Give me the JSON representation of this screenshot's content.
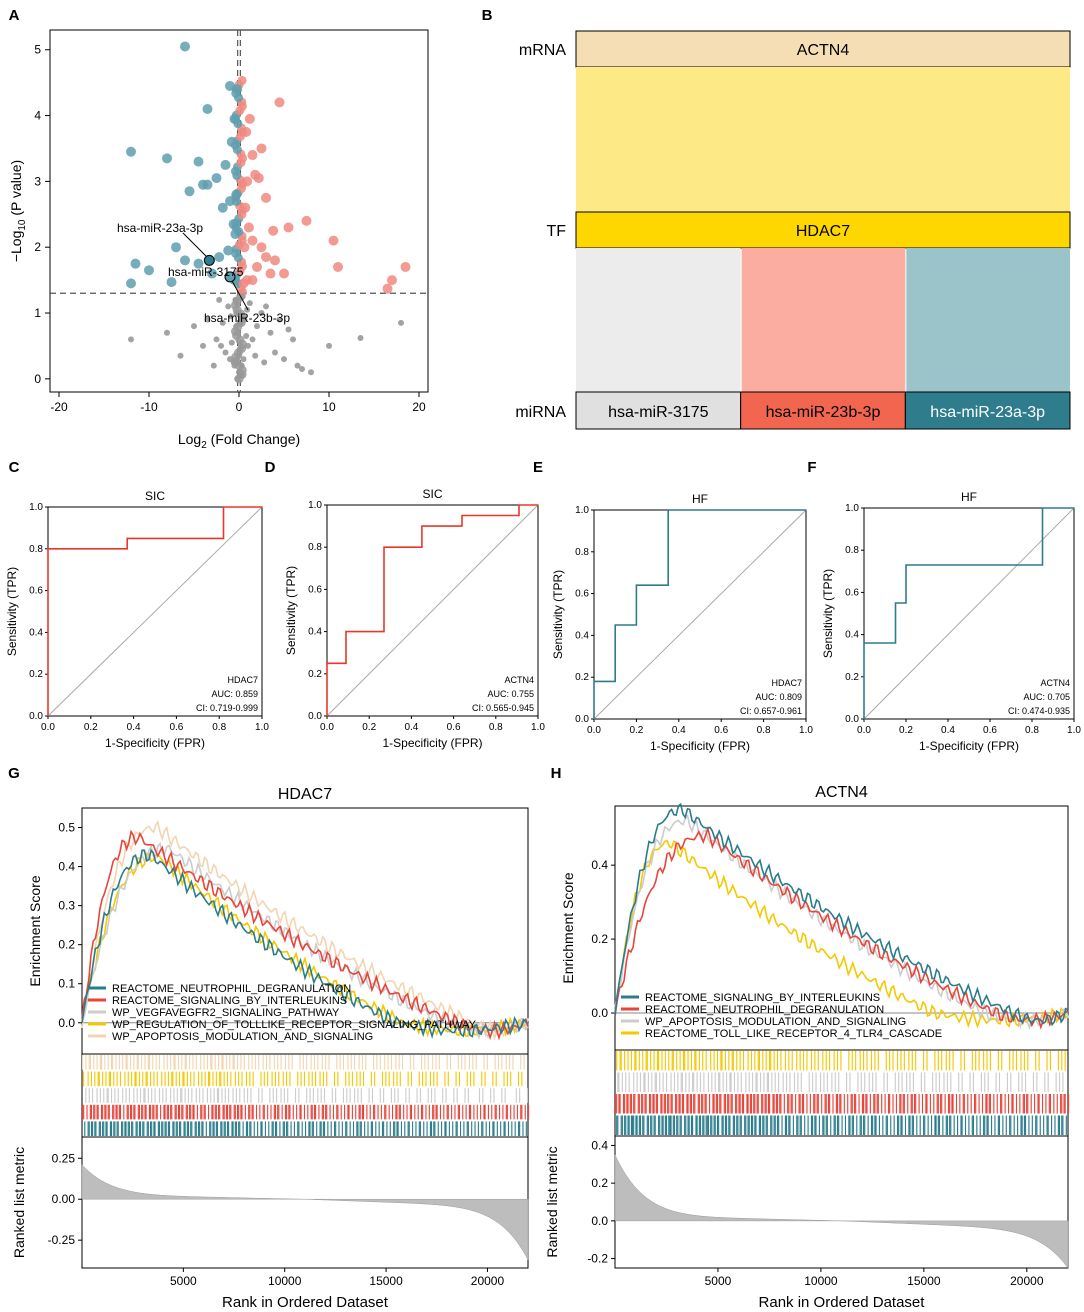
{
  "panel_labels": [
    "A",
    "B",
    "C",
    "D",
    "E",
    "F",
    "G",
    "H"
  ],
  "colors": {
    "up": "#f08a80",
    "down": "#5f9fae",
    "ns": "#999999",
    "roc_red": "#e8382a",
    "roc_teal": "#2e7c8c",
    "gsea_teal": "#2a7d8c",
    "gsea_red": "#e8453a",
    "gsea_gray": "#cccccc",
    "gsea_yellow": "#f5c800",
    "gsea_beige": "#f2d5b0",
    "sankey_mrna": "#f5deb3",
    "sankey_flow": "#fdea86",
    "sankey_tf": "#ffd700",
    "sankey_mir1": "#e0e0e0",
    "sankey_mir2": "#f26650",
    "sankey_mir3": "#2e7c8c"
  },
  "chart_data": [
    {
      "id": "A",
      "type": "scatter",
      "title": "",
      "xlabel": "Log2 (Fold Change)",
      "ylabel": "-Log10 (P value)",
      "xlim": [
        -21,
        21
      ],
      "ylim": [
        -0.2,
        5.3
      ],
      "xticks": [
        -20,
        -10,
        0,
        10,
        20
      ],
      "yticks": [
        0,
        1,
        2,
        3,
        4,
        5
      ],
      "thresholds": {
        "p": 1.3,
        "fc": [
          -0.15,
          0.15
        ]
      },
      "points_up": [
        [
          4.5,
          4.2
        ],
        [
          1.2,
          3.95
        ],
        [
          0.8,
          3.75
        ],
        [
          2.5,
          3.5
        ],
        [
          1.5,
          3.4
        ],
        [
          1.8,
          3.1
        ],
        [
          2.2,
          3.05
        ],
        [
          0.9,
          3.0
        ],
        [
          3.0,
          2.75
        ],
        [
          0.7,
          2.6
        ],
        [
          1.1,
          2.3
        ],
        [
          3.8,
          2.25
        ],
        [
          5.5,
          2.3
        ],
        [
          7.5,
          2.4
        ],
        [
          1.5,
          2.1
        ],
        [
          2.5,
          2.0
        ],
        [
          10.5,
          2.1
        ],
        [
          0.6,
          2.0
        ],
        [
          3.0,
          1.85
        ],
        [
          4.0,
          1.8
        ],
        [
          2.0,
          1.7
        ],
        [
          5.0,
          1.6
        ],
        [
          11.0,
          1.7
        ],
        [
          3.5,
          1.6
        ],
        [
          0.9,
          1.5
        ],
        [
          18.5,
          1.7
        ],
        [
          17.0,
          1.5
        ],
        [
          16.5,
          1.37
        ],
        [
          1.5,
          1.5
        ],
        [
          0.5,
          1.45
        ]
      ],
      "points_down": [
        [
          -6.0,
          5.05
        ],
        [
          -1.0,
          4.45
        ],
        [
          -0.2,
          4.4
        ],
        [
          -3.5,
          4.1
        ],
        [
          -0.5,
          3.95
        ],
        [
          -0.8,
          3.6
        ],
        [
          -12.0,
          3.45
        ],
        [
          -8.0,
          3.35
        ],
        [
          -4.5,
          3.3
        ],
        [
          -1.5,
          3.25
        ],
        [
          -2.5,
          3.05
        ],
        [
          -3.5,
          2.95
        ],
        [
          -4.0,
          2.95
        ],
        [
          -5.5,
          2.85
        ],
        [
          -0.3,
          2.8
        ],
        [
          -1.0,
          2.7
        ],
        [
          -1.8,
          2.6
        ],
        [
          -0.6,
          2.35
        ],
        [
          -0.4,
          2.2
        ],
        [
          -7.0,
          2.0
        ],
        [
          -1.2,
          1.95
        ],
        [
          -6.0,
          1.8
        ],
        [
          -2.2,
          1.85
        ],
        [
          -11.5,
          1.75
        ],
        [
          -4.5,
          1.75
        ],
        [
          -10.0,
          1.65
        ],
        [
          -3.0,
          1.6
        ],
        [
          -0.8,
          1.55
        ],
        [
          -12.0,
          1.45
        ],
        [
          -7.5,
          1.47
        ],
        [
          -0.5,
          1.5
        ]
      ],
      "points_ns": [
        [
          -12.0,
          0.6
        ],
        [
          -8.0,
          0.7
        ],
        [
          -5.0,
          0.8
        ],
        [
          -3.5,
          0.9
        ],
        [
          -2.5,
          0.6
        ],
        [
          -2.0,
          0.5
        ],
        [
          -1.5,
          0.4
        ],
        [
          -1.0,
          0.3
        ],
        [
          -0.5,
          0.2
        ],
        [
          0.0,
          0.1
        ],
        [
          0.3,
          0.05
        ],
        [
          -0.2,
          0.0
        ],
        [
          0.5,
          0.3
        ],
        [
          1.0,
          0.5
        ],
        [
          1.5,
          0.6
        ],
        [
          2.0,
          0.8
        ],
        [
          2.5,
          1.0
        ],
        [
          3.0,
          1.1
        ],
        [
          3.5,
          0.7
        ],
        [
          4.0,
          0.4
        ],
        [
          5.0,
          0.3
        ],
        [
          6.0,
          0.6
        ],
        [
          6.5,
          0.2
        ],
        [
          7.0,
          0.15
        ],
        [
          8.0,
          0.1
        ],
        [
          10.0,
          0.5
        ],
        [
          13.5,
          0.62
        ],
        [
          18.0,
          0.85
        ],
        [
          -0.4,
          1.2
        ],
        [
          0.4,
          1.25
        ],
        [
          -0.3,
          1.0
        ],
        [
          0.2,
          0.85
        ],
        [
          -0.1,
          0.7
        ],
        [
          0.1,
          0.45
        ],
        [
          -0.6,
          0.25
        ],
        [
          0.6,
          0.9
        ],
        [
          -1.2,
          1.1
        ],
        [
          1.2,
          1.15
        ],
        [
          -1.8,
          0.85
        ],
        [
          1.8,
          0.35
        ],
        [
          -2.8,
          0.2
        ],
        [
          2.8,
          0.25
        ],
        [
          -4.0,
          0.5
        ],
        [
          4.5,
          0.9
        ],
        [
          -6.5,
          0.35
        ],
        [
          5.5,
          0.75
        ],
        [
          -0.8,
          0.55
        ],
        [
          0.8,
          0.65
        ],
        [
          0.0,
          0.35
        ],
        [
          -0.3,
          0.8
        ],
        [
          0.3,
          0.2
        ],
        [
          -0.9,
          0.95
        ],
        [
          0.9,
          1.05
        ],
        [
          -2.2,
          1.2
        ]
      ],
      "highlights": [
        {
          "label": "hsa-miR-23a-3p",
          "x": -3.3,
          "y": 1.8
        },
        {
          "label": "hsa-miR-3175",
          "x": -1.0,
          "y": 1.55
        },
        {
          "label": "hsa-miR-23b-3p",
          "x": -1.0,
          "y": 1.55
        }
      ]
    },
    {
      "id": "B",
      "type": "sankey",
      "nodes": {
        "mRNA": {
          "label": "mRNA",
          "value": "ACTN4"
        },
        "TF": {
          "label": "TF",
          "value": "HDAC7"
        },
        "miRNA": {
          "label": "miRNA",
          "values": [
            "hsa-miR-3175",
            "hsa-miR-23b-3p",
            "hsa-miR-23a-3p"
          ]
        }
      }
    },
    {
      "id": "C",
      "type": "line",
      "title": "SIC",
      "xlabel": "1-Specificity (FPR)",
      "ylabel": "Sensitivity (TPR)",
      "xlim": [
        0,
        1
      ],
      "ylim": [
        0,
        1
      ],
      "roc": [
        [
          0,
          0
        ],
        [
          0,
          0.8
        ],
        [
          0.37,
          0.8
        ],
        [
          0.37,
          0.85
        ],
        [
          0.82,
          0.85
        ],
        [
          0.82,
          1
        ],
        [
          1,
          1
        ]
      ],
      "gene": "HDAC7",
      "auc": "AUC: 0.859",
      "ci": "CI: 0.719-0.999",
      "color_key": "roc_red"
    },
    {
      "id": "D",
      "type": "line",
      "title": "SIC",
      "xlabel": "1-Specificity (FPR)",
      "ylabel": "Sensitivity (TPR)",
      "xlim": [
        0,
        1
      ],
      "ylim": [
        0,
        1
      ],
      "roc": [
        [
          0,
          0
        ],
        [
          0,
          0.25
        ],
        [
          0.09,
          0.25
        ],
        [
          0.09,
          0.4
        ],
        [
          0.27,
          0.4
        ],
        [
          0.27,
          0.8
        ],
        [
          0.45,
          0.8
        ],
        [
          0.45,
          0.9
        ],
        [
          0.64,
          0.9
        ],
        [
          0.64,
          0.95
        ],
        [
          0.91,
          0.95
        ],
        [
          0.91,
          1
        ],
        [
          1,
          1
        ]
      ],
      "gene": "ACTN4",
      "auc": "AUC: 0.755",
      "ci": "CI: 0.565-0.945",
      "color_key": "roc_red"
    },
    {
      "id": "E",
      "type": "line",
      "title": "HF",
      "xlabel": "1-Specificity (FPR)",
      "ylabel": "Sensitivity (TPR)",
      "xlim": [
        0,
        1
      ],
      "ylim": [
        0,
        1
      ],
      "roc": [
        [
          0,
          0
        ],
        [
          0,
          0.18
        ],
        [
          0.1,
          0.18
        ],
        [
          0.1,
          0.45
        ],
        [
          0.2,
          0.45
        ],
        [
          0.2,
          0.64
        ],
        [
          0.35,
          0.64
        ],
        [
          0.35,
          1
        ],
        [
          1,
          1
        ]
      ],
      "gene": "HDAC7",
      "auc": "AUC: 0.809",
      "ci": "CI: 0.657-0.961",
      "color_key": "roc_teal"
    },
    {
      "id": "F",
      "type": "line",
      "title": "HF",
      "xlabel": "1-Specificity (FPR)",
      "ylabel": "Sensitivity (TPR)",
      "xlim": [
        0,
        1
      ],
      "ylim": [
        0,
        1
      ],
      "roc": [
        [
          0,
          0
        ],
        [
          0,
          0.36
        ],
        [
          0.15,
          0.36
        ],
        [
          0.15,
          0.55
        ],
        [
          0.2,
          0.55
        ],
        [
          0.2,
          0.73
        ],
        [
          0.85,
          0.73
        ],
        [
          0.85,
          1
        ],
        [
          1,
          1
        ]
      ],
      "gene": "ACTN4",
      "auc": "AUC: 0.705",
      "ci": "CI: 0.474-0.935",
      "color_key": "roc_teal"
    },
    {
      "id": "G",
      "type": "line",
      "title": "HDAC7",
      "ylabel_es": "Enrichment Score",
      "ylabel_rank": "Ranked list metric",
      "xlabel": "Rank in Ordered Dataset",
      "xlim": [
        0,
        22000
      ],
      "es_ylim": [
        -0.08,
        0.55
      ],
      "rank_ylim": [
        -0.42,
        0.38
      ],
      "es_yticks": [
        0.0,
        0.1,
        0.2,
        0.3,
        0.4,
        0.5
      ],
      "rank_yticks": [
        0.25,
        0.0,
        -0.25
      ],
      "rank_yticklabels": [
        "0.25",
        "0.00",
        "-0.25"
      ],
      "xticks": [
        5000,
        10000,
        15000,
        20000
      ],
      "rank_max": 0.18,
      "rank_min": -0.32,
      "series": [
        {
          "name": "REACTOME_NEUTROPHIL_DEGRANULATION",
          "color_key": "gsea_teal",
          "peak": 0.43,
          "peakpos": 3400,
          "end": 15500
        },
        {
          "name": "REACTOME_SIGNALING_BY_INTERLEUKINS",
          "color_key": "gsea_red",
          "peak": 0.475,
          "peakpos": 2800,
          "end": 18500
        },
        {
          "name": "WP_VEGFAVEGFR2_SIGNALING_PATHWAY",
          "color_key": "gsea_gray",
          "peak": 0.445,
          "peakpos": 4300,
          "end": 18000
        },
        {
          "name": "WP_REGULATION_OF_TOLLLIKE_RECEPTOR_SIGNALING_PATHWAY",
          "color_key": "gsea_yellow",
          "peak": 0.425,
          "peakpos": 3800,
          "end": 15800
        },
        {
          "name": "WP_APOPTOSIS_MODULATION_AND_SIGNALING",
          "color_key": "gsea_beige",
          "peak": 0.5,
          "peakpos": 3700,
          "end": 19200
        }
      ]
    },
    {
      "id": "H",
      "type": "line",
      "title": "ACTN4",
      "ylabel_es": "Enrichment Score",
      "ylabel_rank": "Ranked list metric",
      "xlabel": "Rank in Ordered Dataset",
      "xlim": [
        0,
        22000
      ],
      "es_ylim": [
        -0.1,
        0.56
      ],
      "rank_ylim": [
        -0.25,
        0.45
      ],
      "es_yticks": [
        0.0,
        0.2,
        0.4
      ],
      "rank_yticks": [
        0.4,
        0.2,
        0.0,
        -0.2
      ],
      "rank_yticklabels": [
        "0.4",
        "0.2",
        "0.0",
        "-0.2"
      ],
      "xticks": [
        5000,
        10000,
        15000,
        20000
      ],
      "rank_max": 0.32,
      "rank_min": -0.2,
      "series": [
        {
          "name": "REACTOME_SIGNALING_BY_INTERLEUKINS",
          "color_key": "gsea_teal",
          "peak": 0.55,
          "peakpos": 3300,
          "end": 19300
        },
        {
          "name": "REACTOME_NEUTROPHIL_DEGRANULATION",
          "color_key": "gsea_red",
          "peak": 0.48,
          "peakpos": 4500,
          "end": 18500
        },
        {
          "name": "WP_APOPTOSIS_MODULATION_AND_SIGNALING",
          "color_key": "gsea_gray",
          "peak": 0.52,
          "peakpos": 3500,
          "end": 18000
        },
        {
          "name": "REACTOME_TOLL_LIKE_RECEPTOR_4_TLR4_CASCADE",
          "color_key": "gsea_yellow",
          "peak": 0.46,
          "peakpos": 2700,
          "end": 15500
        }
      ]
    }
  ]
}
